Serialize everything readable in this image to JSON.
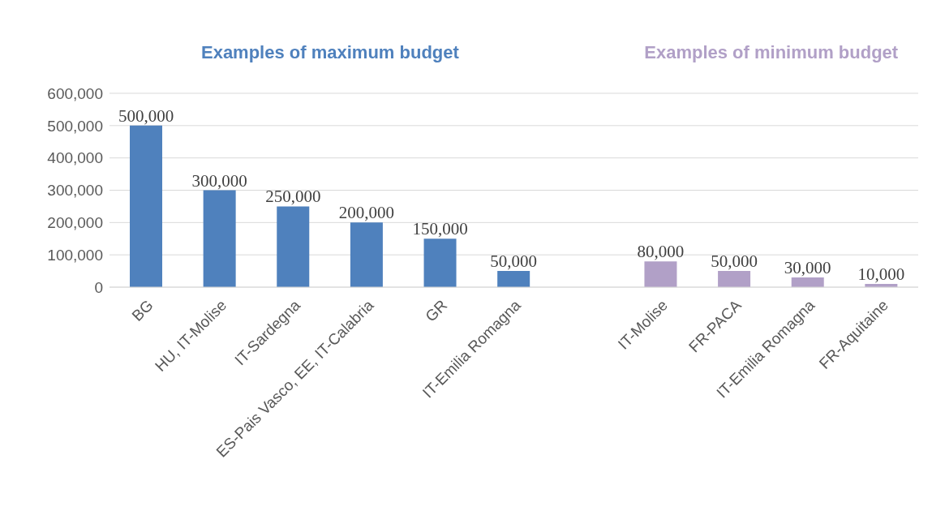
{
  "chart_data": {
    "type": "bar",
    "stacked": true,
    "categories": [
      "BG",
      "HU, IT-Molise",
      "IT-Sardegna",
      "ES-Pais Vasco, EE, IT-Calabria",
      "GR",
      "IT-Emilia Romagna",
      null,
      "IT-Molise",
      "FR-PACA",
      "IT-Emilia Romagna",
      "FR-Aquitaine"
    ],
    "series": [
      {
        "name": "Examples of maximum budget",
        "color": "#4f81bd",
        "values": [
          500000,
          300000,
          250000,
          200000,
          150000,
          50000,
          null,
          null,
          null,
          null,
          null
        ],
        "value_labels": [
          "500,000",
          "300,000",
          "250,000",
          "200,000",
          "150,000",
          "50,000",
          null,
          null,
          null,
          null,
          null
        ]
      },
      {
        "name": "Examples of minimum budget",
        "color": "#b1a0c7",
        "values": [
          null,
          null,
          null,
          null,
          null,
          null,
          null,
          80000,
          50000,
          30000,
          10000
        ],
        "value_labels": [
          null,
          null,
          null,
          null,
          null,
          null,
          null,
          "80,000",
          "50,000",
          "30,000",
          "10,000"
        ]
      }
    ],
    "ylim": [
      0,
      600000
    ],
    "yticks": [
      {
        "value": 0,
        "label": "0"
      },
      {
        "value": 100000,
        "label": "100,000"
      },
      {
        "value": 200000,
        "label": "200,000"
      },
      {
        "value": 300000,
        "label": "300,000"
      },
      {
        "value": 400000,
        "label": "400,000"
      },
      {
        "value": 500000,
        "label": "500,000"
      },
      {
        "value": 600000,
        "label": "600,000"
      }
    ],
    "grid": "y"
  }
}
